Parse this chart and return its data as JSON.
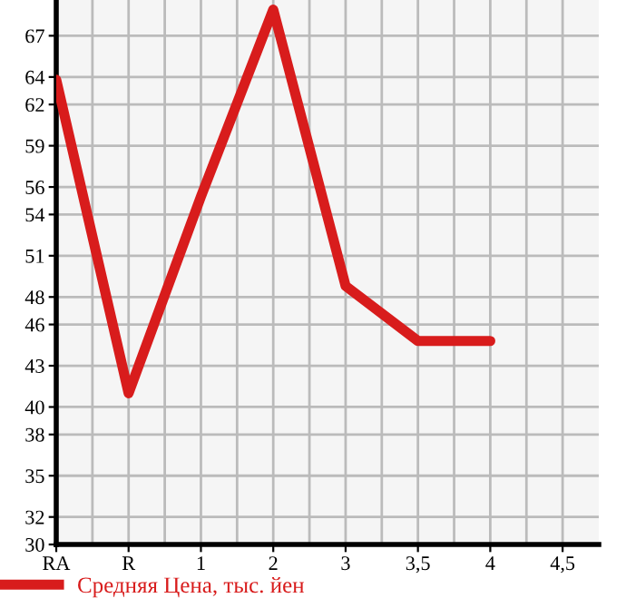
{
  "chart_data": {
    "type": "line",
    "categories": [
      "RA",
      "R",
      "1",
      "2",
      "3",
      "3,5",
      "4",
      "4,5"
    ],
    "series": [
      {
        "name": "Средняя Цена, тыс. йен",
        "color": "#d81c1c",
        "values": [
          63.8,
          41.0,
          55.3,
          68.9,
          48.8,
          44.8,
          44.8,
          null
        ]
      }
    ],
    "ylim": [
      30,
      69.6
    ],
    "yticks": [
      30,
      32,
      35,
      38,
      40,
      43,
      46,
      48,
      51,
      54,
      56,
      59,
      62,
      64,
      67
    ],
    "grid": true,
    "legend": "bottom left",
    "marker": "none",
    "line_style": "solid"
  }
}
